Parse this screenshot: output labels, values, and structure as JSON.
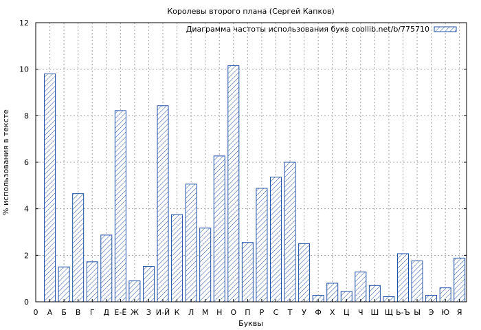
{
  "chart_data": {
    "type": "bar",
    "title": "Королевы второго плана (Сергей Капков)",
    "xlabel": "Буквы",
    "ylabel": "% использования в тексте",
    "legend": {
      "label": "Диаграмма частоты использования букв coollib.net/b/775710",
      "position": "top-right"
    },
    "grid": true,
    "ylim": [
      0,
      12
    ],
    "yticks": [
      0,
      2,
      4,
      6,
      8,
      10,
      12
    ],
    "x_start_label": "0",
    "categories": [
      "А",
      "Б",
      "В",
      "Г",
      "Д",
      "Е-Ё",
      "Ж",
      "З",
      "И-Й",
      "К",
      "Л",
      "М",
      "Н",
      "О",
      "П",
      "Р",
      "С",
      "Т",
      "У",
      "Ф",
      "Х",
      "Ц",
      "Ч",
      "Ш",
      "Щ",
      "Ь-Ъ",
      "Ы",
      "Э",
      "Ю",
      "Я"
    ],
    "values": [
      9.8,
      1.5,
      4.65,
      1.72,
      2.87,
      8.22,
      0.9,
      1.52,
      8.43,
      3.75,
      5.06,
      3.17,
      6.27,
      10.15,
      2.55,
      4.88,
      5.36,
      6.0,
      2.5,
      0.28,
      0.8,
      0.45,
      1.28,
      0.7,
      0.22,
      2.07,
      1.76,
      0.28,
      0.6,
      1.88
    ],
    "colors": {
      "bar_stroke": "#1f4fa8",
      "hatch": "#1f4fa8",
      "grid": "#a0a0a0"
    }
  }
}
